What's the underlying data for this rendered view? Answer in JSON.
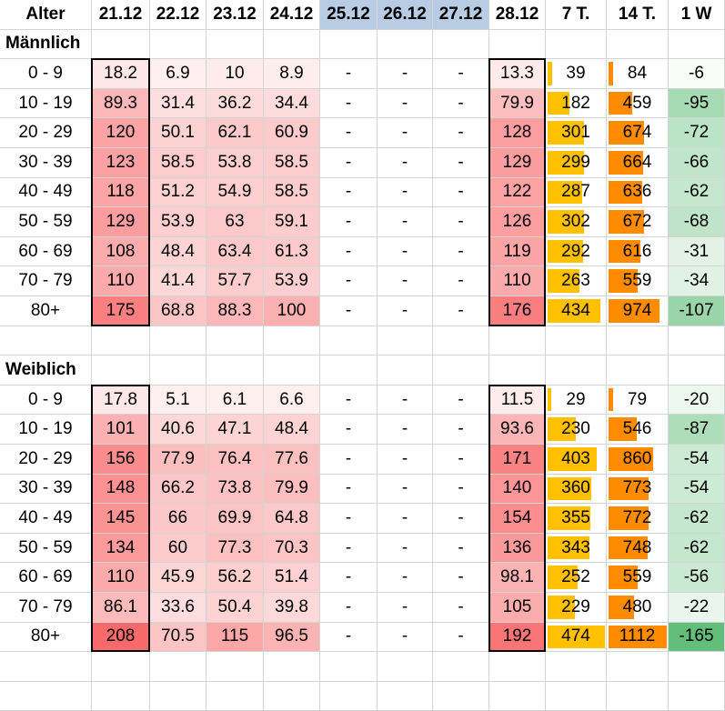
{
  "header": [
    "Alter",
    "21.12",
    "22.12",
    "23.12",
    "24.12",
    "25.12",
    "26.12",
    "27.12",
    "28.12",
    "7 T.",
    "14 T.",
    "1 W"
  ],
  "holiday_columns": [
    5,
    6,
    7
  ],
  "colors": {
    "holiday_header": "#b8cce4",
    "heat_max": "#f8696b",
    "bar_7t": "#ffc000",
    "bar_14t": "#ff8c00",
    "green_max": "#63be7b",
    "outline": "#000000"
  },
  "heat_max_value": 208,
  "bar7_max_value": 474,
  "bar14_max_value": 1112,
  "green_max_abs": 165,
  "sections": [
    {
      "title": "Männlich",
      "rows": [
        {
          "age": "0 - 9",
          "d": [
            "18.2",
            "6.9",
            "10",
            "8.9",
            "-",
            "-",
            "-",
            "13.3"
          ],
          "t7": "39",
          "t14": "84",
          "w1": "-6"
        },
        {
          "age": "10 - 19",
          "d": [
            "89.3",
            "31.4",
            "36.2",
            "34.4",
            "-",
            "-",
            "-",
            "79.9"
          ],
          "t7": "182",
          "t14": "459",
          "w1": "-95"
        },
        {
          "age": "20 - 29",
          "d": [
            "120",
            "50.1",
            "62.1",
            "60.9",
            "-",
            "-",
            "-",
            "128"
          ],
          "t7": "301",
          "t14": "674",
          "w1": "-72"
        },
        {
          "age": "30 - 39",
          "d": [
            "123",
            "58.5",
            "53.8",
            "58.5",
            "-",
            "-",
            "-",
            "129"
          ],
          "t7": "299",
          "t14": "664",
          "w1": "-66"
        },
        {
          "age": "40 - 49",
          "d": [
            "118",
            "51.2",
            "54.9",
            "58.5",
            "-",
            "-",
            "-",
            "122"
          ],
          "t7": "287",
          "t14": "636",
          "w1": "-62"
        },
        {
          "age": "50 - 59",
          "d": [
            "129",
            "53.9",
            "63",
            "59.1",
            "-",
            "-",
            "-",
            "126"
          ],
          "t7": "302",
          "t14": "672",
          "w1": "-68"
        },
        {
          "age": "60 - 69",
          "d": [
            "108",
            "48.4",
            "63.4",
            "61.3",
            "-",
            "-",
            "-",
            "119"
          ],
          "t7": "292",
          "t14": "616",
          "w1": "-31"
        },
        {
          "age": "70 - 79",
          "d": [
            "110",
            "41.4",
            "57.7",
            "53.9",
            "-",
            "-",
            "-",
            "110"
          ],
          "t7": "263",
          "t14": "559",
          "w1": "-34"
        },
        {
          "age": "80+",
          "d": [
            "175",
            "68.8",
            "88.3",
            "100",
            "-",
            "-",
            "-",
            "176"
          ],
          "t7": "434",
          "t14": "974",
          "w1": "-107"
        }
      ]
    },
    {
      "title": "Weiblich",
      "rows": [
        {
          "age": "0 - 9",
          "d": [
            "17.8",
            "5.1",
            "6.1",
            "6.6",
            "-",
            "-",
            "-",
            "11.5"
          ],
          "t7": "29",
          "t14": "79",
          "w1": "-20"
        },
        {
          "age": "10 - 19",
          "d": [
            "101",
            "40.6",
            "47.1",
            "48.4",
            "-",
            "-",
            "-",
            "93.6"
          ],
          "t7": "230",
          "t14": "546",
          "w1": "-87"
        },
        {
          "age": "20 - 29",
          "d": [
            "156",
            "77.9",
            "76.4",
            "77.6",
            "-",
            "-",
            "-",
            "171"
          ],
          "t7": "403",
          "t14": "860",
          "w1": "-54"
        },
        {
          "age": "30 - 39",
          "d": [
            "148",
            "66.2",
            "73.8",
            "79.9",
            "-",
            "-",
            "-",
            "140"
          ],
          "t7": "360",
          "t14": "773",
          "w1": "-54"
        },
        {
          "age": "40 - 49",
          "d": [
            "145",
            "66",
            "69.9",
            "64.8",
            "-",
            "-",
            "-",
            "154"
          ],
          "t7": "355",
          "t14": "772",
          "w1": "-62"
        },
        {
          "age": "50 - 59",
          "d": [
            "134",
            "60",
            "77.3",
            "70.3",
            "-",
            "-",
            "-",
            "136"
          ],
          "t7": "343",
          "t14": "748",
          "w1": "-62"
        },
        {
          "age": "60 - 69",
          "d": [
            "110",
            "45.9",
            "56.2",
            "51.4",
            "-",
            "-",
            "-",
            "98.1"
          ],
          "t7": "252",
          "t14": "559",
          "w1": "-56"
        },
        {
          "age": "70 - 79",
          "d": [
            "86.1",
            "33.6",
            "50.4",
            "39.8",
            "-",
            "-",
            "-",
            "105"
          ],
          "t7": "229",
          "t14": "480",
          "w1": "-22"
        },
        {
          "age": "80+",
          "d": [
            "208",
            "70.5",
            "115",
            "96.5",
            "-",
            "-",
            "-",
            "192"
          ],
          "t7": "474",
          "t14": "1112",
          "w1": "-165"
        }
      ]
    }
  ]
}
